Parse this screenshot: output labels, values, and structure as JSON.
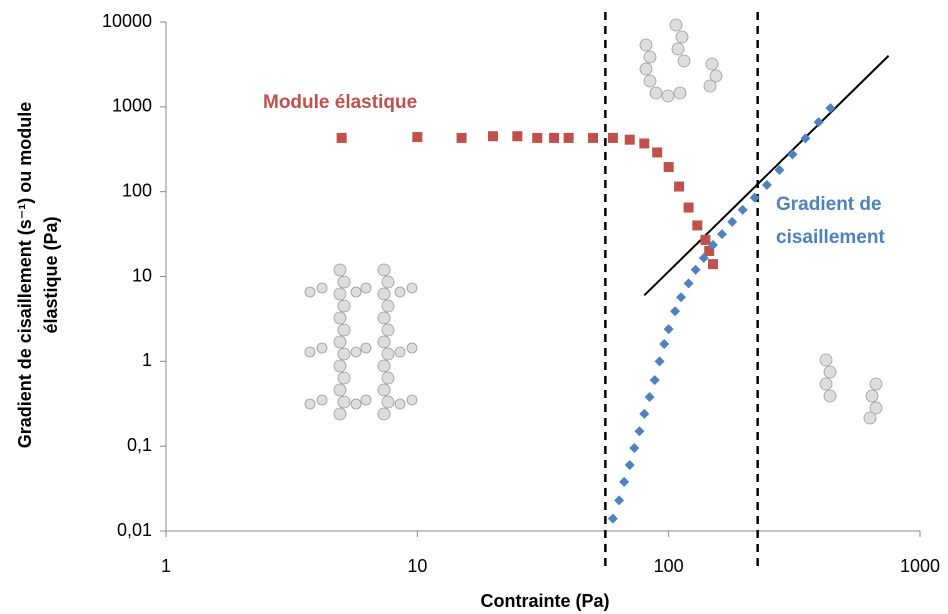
{
  "chart_data": {
    "type": "scatter",
    "x_label": "Contrainte (Pa)",
    "y_label": [
      "Gradient de cisaillement (s⁻¹) ou module",
      "élastique (Pa)"
    ],
    "xlim": [
      1,
      1000
    ],
    "xticks": [
      1,
      10,
      100,
      1000
    ],
    "x_log": true,
    "ylim": [
      0.01,
      10000
    ],
    "y_log": true,
    "yticks": [
      {
        "value": 0.01,
        "label": "0,01"
      },
      {
        "value": 0.1,
        "label": "0,1"
      },
      1,
      10,
      100,
      1000,
      10000
    ],
    "grid": false,
    "series": [
      {
        "name": "Module élastique",
        "color": "#c0504d",
        "marker": "square",
        "x": [
          5,
          10,
          15,
          20,
          25,
          30,
          35,
          40,
          50,
          60,
          70,
          80,
          90,
          100,
          110,
          120,
          130,
          140,
          145,
          150
        ],
        "values": [
          430,
          440,
          430,
          450,
          450,
          430,
          430,
          430,
          430,
          430,
          410,
          370,
          290,
          195,
          115,
          65,
          40,
          27,
          20,
          14
        ]
      },
      {
        "name": [
          "Gradient de",
          "cisaillement"
        ],
        "color": "#4f81bd",
        "marker": "diamond",
        "x": [
          60,
          63.5,
          66.5,
          70,
          73,
          76.5,
          80,
          84,
          88,
          92,
          96,
          100,
          106,
          112,
          120,
          128,
          138,
          150,
          163,
          179,
          197,
          220,
          246,
          276,
          311,
          350,
          395,
          440
        ],
        "values": [
          0.014,
          0.023,
          0.038,
          0.06,
          0.095,
          0.15,
          0.24,
          0.38,
          0.6,
          1.0,
          1.6,
          2.4,
          3.9,
          5.7,
          8.3,
          12,
          16.5,
          23.5,
          31.6,
          44,
          61,
          85,
          120,
          180,
          275,
          425,
          660,
          966
        ]
      }
    ],
    "trend_line": {
      "x": [
        80,
        750
      ],
      "values": [
        6,
        4000
      ],
      "color": "#000000"
    },
    "vlines": [
      56,
      226
    ]
  }
}
